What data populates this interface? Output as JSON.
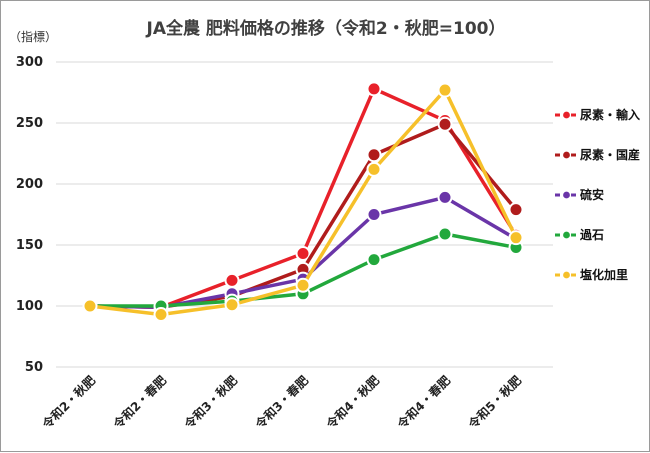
{
  "chart_data": {
    "type": "line",
    "title": "JA全農 肥料価格の推移（令和2・秋肥=100）",
    "ylabel": "（指標）",
    "xlabel": "",
    "categories": [
      "令和2・秋肥",
      "令和2・春肥",
      "令和3・秋肥",
      "令和3・春肥",
      "令和4・秋肥",
      "令和4・春肥",
      "令和5・秋肥"
    ],
    "ylim": [
      50,
      300
    ],
    "yticks": [
      50,
      100,
      150,
      200,
      250,
      300
    ],
    "grid": true,
    "legend_position": "right",
    "series": [
      {
        "name": "尿素・輸入",
        "color": "#e8212a",
        "values": [
          100,
          99,
          121,
          143,
          278,
          252,
          158
        ]
      },
      {
        "name": "尿素・国産",
        "color": "#b01c1c",
        "values": [
          100,
          99,
          108,
          130,
          224,
          249,
          179
        ]
      },
      {
        "name": "硫安",
        "color": "#6a35a8",
        "values": [
          100,
          99,
          110,
          122,
          175,
          189,
          155
        ]
      },
      {
        "name": "過石",
        "color": "#22a83c",
        "values": [
          100,
          100,
          104,
          110,
          138,
          159,
          148
        ]
      },
      {
        "name": "塩化加里",
        "color": "#f6c02a",
        "values": [
          100,
          93,
          101,
          117,
          212,
          277,
          156
        ]
      }
    ]
  }
}
